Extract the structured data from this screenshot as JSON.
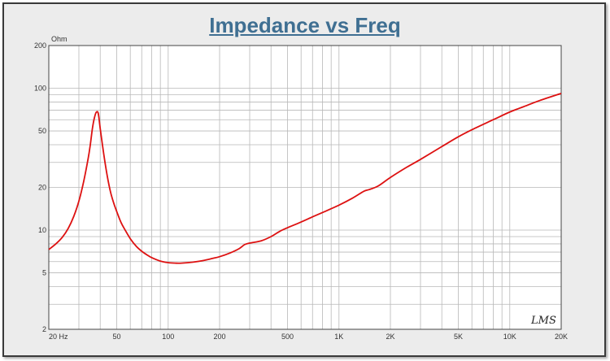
{
  "chart_data": {
    "type": "line",
    "title": "Impedance vs Freq",
    "ylabel": "Ohm",
    "xlabel": "",
    "xscale": "log",
    "yscale": "log",
    "xlim": [
      20,
      20000
    ],
    "ylim": [
      2,
      200
    ],
    "grid": true,
    "watermark": "LMS",
    "colors": {
      "line": "#dd1111",
      "grid": "#b8b8b8",
      "title": "#3f6f92",
      "plot_bg": "#ffffff"
    },
    "x_ticks": [
      {
        "value": 20,
        "label": "20  Hz"
      },
      {
        "value": 50,
        "label": "50"
      },
      {
        "value": 100,
        "label": "100"
      },
      {
        "value": 200,
        "label": "200"
      },
      {
        "value": 500,
        "label": "500"
      },
      {
        "value": 1000,
        "label": "1K"
      },
      {
        "value": 2000,
        "label": "2K"
      },
      {
        "value": 5000,
        "label": "5K"
      },
      {
        "value": 10000,
        "label": "10K"
      },
      {
        "value": 20000,
        "label": "20K"
      }
    ],
    "y_ticks": [
      {
        "value": 200,
        "label": "200"
      },
      {
        "value": 100,
        "label": "100"
      },
      {
        "value": 50,
        "label": "50"
      },
      {
        "value": 20,
        "label": "20"
      },
      {
        "value": 10,
        "label": "10"
      },
      {
        "value": 5,
        "label": "5"
      },
      {
        "value": 2,
        "label": "2"
      }
    ],
    "series": [
      {
        "x": [
          20,
          22,
          24,
          26,
          28,
          30,
          32,
          34,
          35,
          36,
          37,
          38,
          39,
          40,
          42,
          44,
          46,
          48,
          50,
          53,
          56,
          60,
          65,
          70,
          75,
          80,
          90,
          100,
          110,
          120,
          140,
          160,
          180,
          200,
          230,
          260,
          280,
          300,
          350,
          400,
          450,
          500,
          600,
          700,
          800,
          1000,
          1200,
          1400,
          1500,
          1700,
          2000,
          2500,
          3000,
          4000,
          5000,
          6000,
          8000,
          10000,
          12000,
          15000,
          20000
        ],
        "y": [
          7.3,
          8.0,
          8.9,
          10.3,
          12.5,
          16,
          22,
          32,
          40,
          52,
          62,
          68,
          66,
          52,
          34,
          24,
          18.5,
          15.5,
          13.5,
          11.3,
          10,
          8.7,
          7.7,
          7.1,
          6.7,
          6.4,
          6.05,
          5.9,
          5.85,
          5.85,
          5.95,
          6.1,
          6.3,
          6.5,
          6.9,
          7.4,
          7.9,
          8.1,
          8.4,
          9.0,
          9.8,
          10.4,
          11.4,
          12.4,
          13.3,
          15.0,
          16.8,
          18.8,
          19.3,
          20.5,
          23.5,
          27.8,
          31.5,
          38.8,
          45.5,
          51,
          60,
          68,
          74,
          82,
          92
        ]
      }
    ]
  }
}
